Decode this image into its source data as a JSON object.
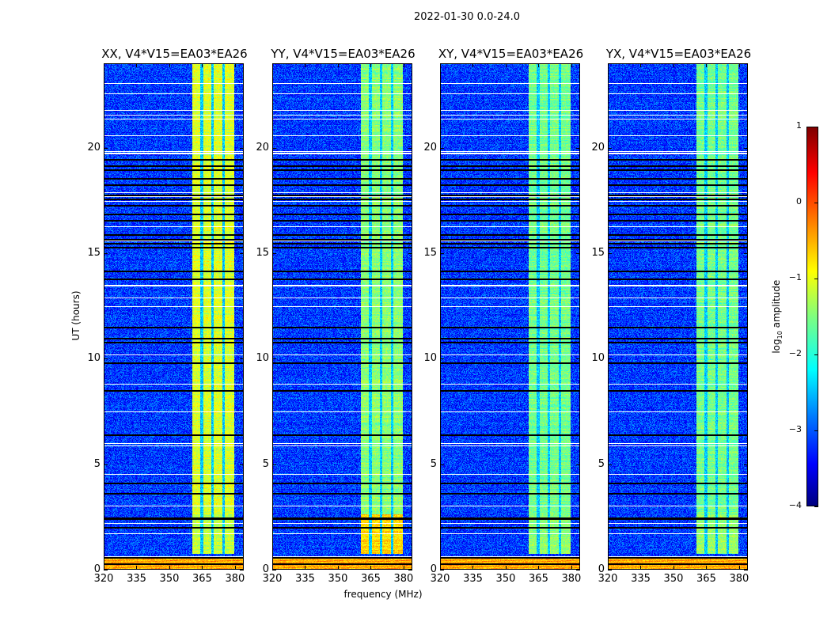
{
  "chart_data": {
    "type": "heatmap",
    "title": "2022-01-30 0.0-24.0",
    "xlabel": "frequency (MHz)",
    "ylabel": "UT (hours)",
    "xlim": [
      320,
      384
    ],
    "ylim": [
      0,
      24
    ],
    "x_ticks": [
      "320",
      "335",
      "350",
      "365",
      "380"
    ],
    "x_tick_values": [
      320,
      335,
      350,
      365,
      380
    ],
    "y_ticks": [
      "0",
      "5",
      "10",
      "15",
      "20"
    ],
    "y_tick_values": [
      0,
      5,
      10,
      15,
      20
    ],
    "colorbar": {
      "label_main": "log",
      "label_sub": "10",
      "label_rest": " amplitude",
      "range": [
        -4,
        1
      ],
      "ticks": [
        "1",
        "0",
        "−1",
        "−2",
        "−3",
        "−4"
      ],
      "tick_values": [
        1,
        0,
        -1,
        -2,
        -3,
        -4
      ],
      "colormap": "jet"
    },
    "background_level": -3.1,
    "rfi_band_mhz": [
      360.5,
      380
    ],
    "rfi_band_gaps_mhz": [
      365,
      370,
      375
    ],
    "low_strip_ut": [
      0,
      0.5
    ],
    "low_strip_level": -0.2,
    "flagged_white_ut": [
      23.1,
      22.6,
      21.8,
      21.6,
      21.4,
      20.6,
      19.85,
      19.8,
      19.75,
      17.9,
      17.7,
      17.5,
      16.3,
      15.6,
      13.5,
      13.45,
      12.9,
      12.5,
      10.2,
      8.8,
      7.5,
      6.0,
      5.85,
      4.5,
      3.0,
      2.2,
      1.7,
      0.62
    ],
    "flagged_black_ut": [
      19.5,
      19.2,
      19.0,
      18.6,
      18.3,
      17.8,
      17.6,
      17.3,
      16.9,
      16.6,
      15.9,
      15.7,
      15.5,
      15.3,
      14.2,
      13.8,
      11.5,
      11.0,
      10.8,
      9.8,
      8.5,
      6.4,
      4.1,
      3.6,
      2.45,
      2.4,
      2.0,
      0.55,
      0.28
    ],
    "panels": [
      {
        "title": "XX, V4*V15=EA03*EA26",
        "band_level": -1.05,
        "low_band_level": -1.2
      },
      {
        "title": "YY, V4*V15=EA03*EA26",
        "band_level": -1.45,
        "low_band_level": -0.7
      },
      {
        "title": "XY, V4*V15=EA03*EA26",
        "band_level": -1.55,
        "low_band_level": -1.4
      },
      {
        "title": "YX, V4*V15=EA03*EA26",
        "band_level": -1.55,
        "low_band_level": -1.4
      }
    ]
  }
}
